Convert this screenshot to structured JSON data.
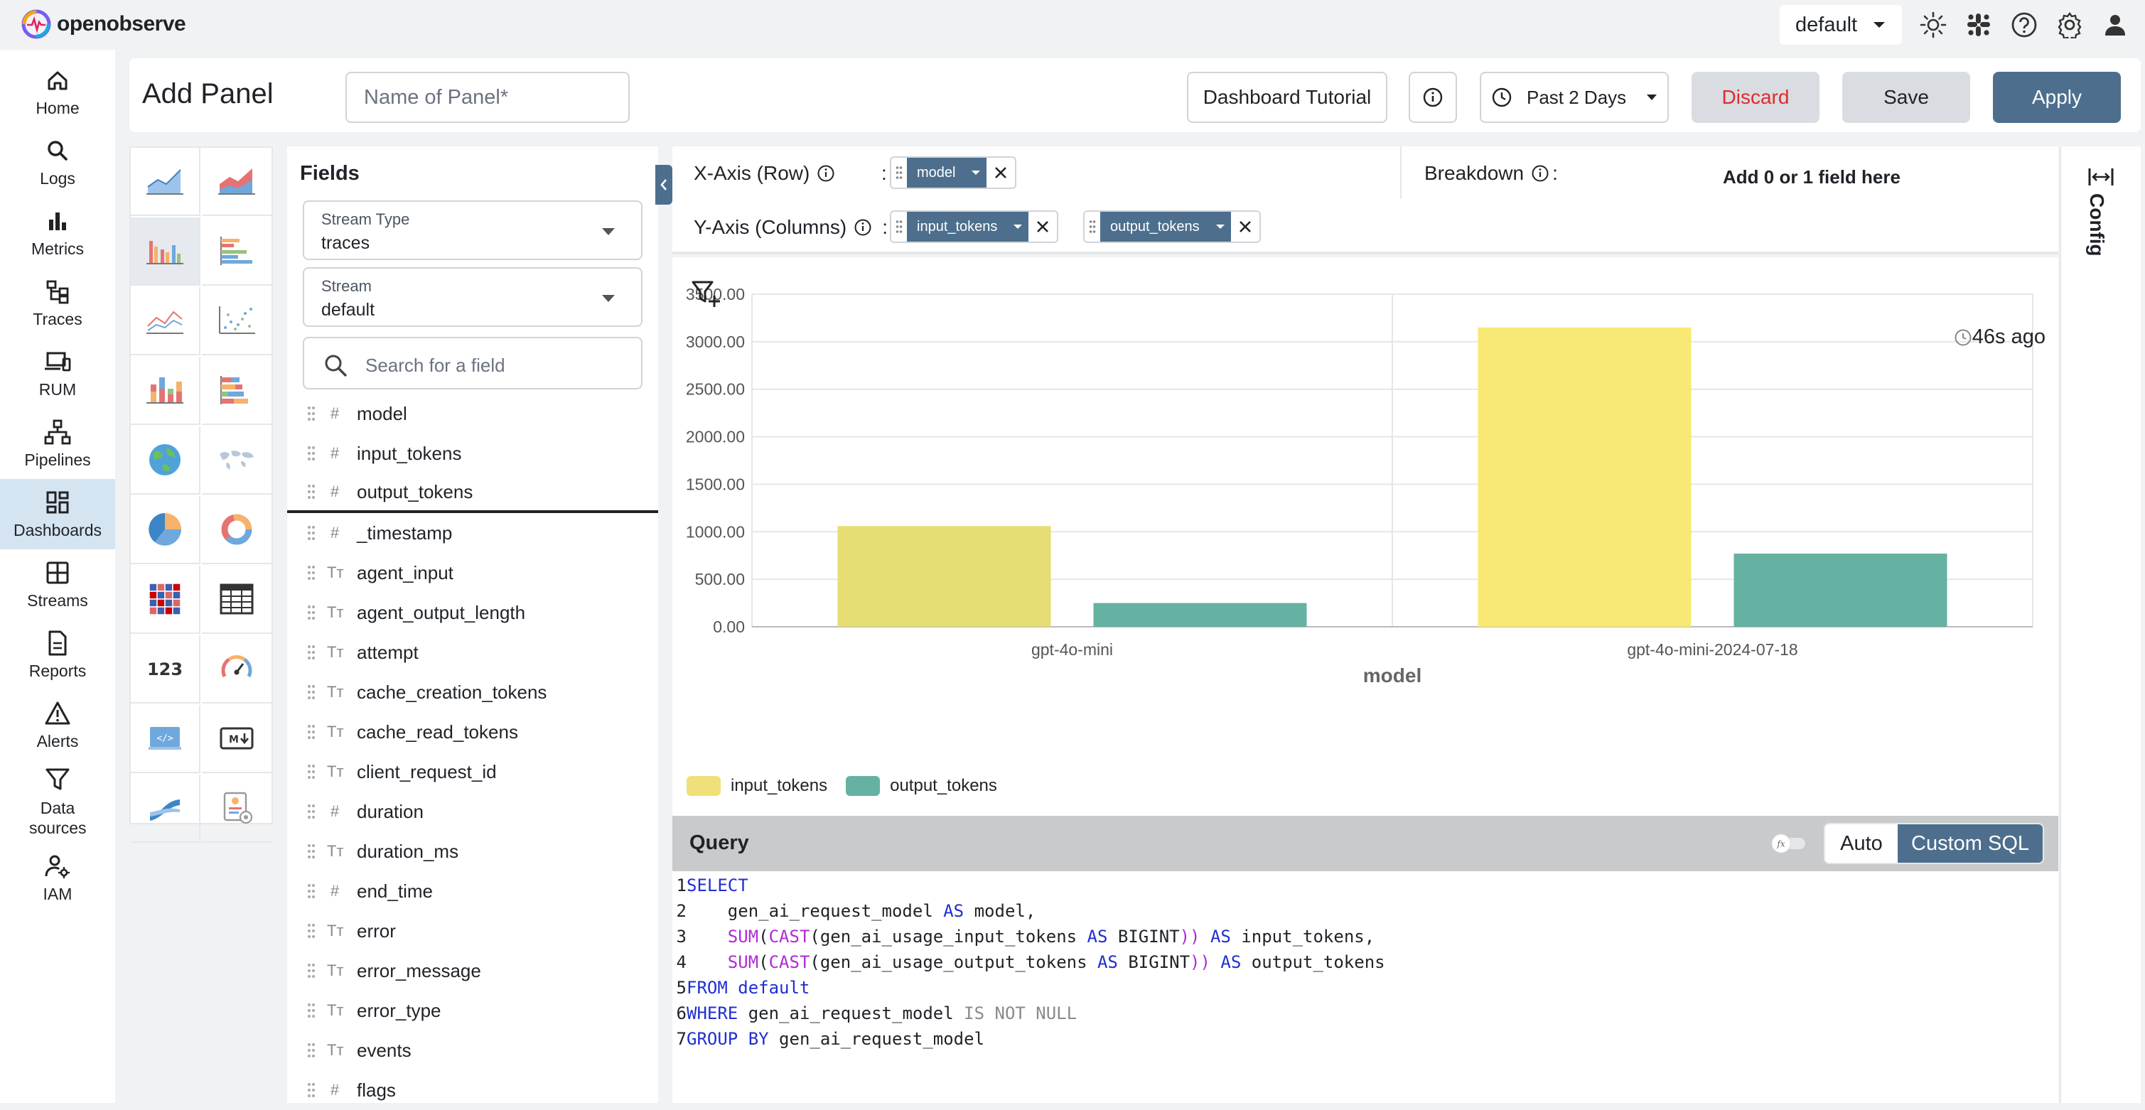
{
  "app": {
    "logo_text": "openobserve"
  },
  "topbar": {
    "org": "default",
    "icons": [
      "theme-light-icon",
      "slack-icon",
      "help-icon",
      "settings-icon",
      "user-icon"
    ]
  },
  "nav": [
    {
      "label": "Home",
      "icon": "home-icon"
    },
    {
      "label": "Logs",
      "icon": "search-icon"
    },
    {
      "label": "Metrics",
      "icon": "bar-chart-icon"
    },
    {
      "label": "Traces",
      "icon": "traces-icon"
    },
    {
      "label": "RUM",
      "icon": "devices-icon"
    },
    {
      "label": "Pipelines",
      "icon": "pipelines-icon"
    },
    {
      "label": "Dashboards",
      "icon": "dashboard-icon",
      "active": true
    },
    {
      "label": "Streams",
      "icon": "streams-icon"
    },
    {
      "label": "Reports",
      "icon": "reports-icon"
    },
    {
      "label": "Alerts",
      "icon": "alert-icon"
    },
    {
      "label": "Data sources",
      "icon": "filter-icon"
    },
    {
      "label": "IAM",
      "icon": "iam-icon"
    }
  ],
  "header": {
    "title": "Add Panel",
    "panel_name_placeholder": "Name of Panel*",
    "tutorial": "Dashboard Tutorial",
    "time_range": "Past 2 Days",
    "discard": "Discard",
    "save": "Save",
    "apply": "Apply"
  },
  "fields": {
    "title": "Fields",
    "stream_type_label": "Stream Type",
    "stream_type_value": "traces",
    "stream_label": "Stream",
    "stream_value": "default",
    "search_placeholder": "Search for a field",
    "items": [
      {
        "name": "model",
        "type": "#"
      },
      {
        "name": "input_tokens",
        "type": "#"
      },
      {
        "name": "output_tokens",
        "type": "#"
      },
      {
        "name": "_timestamp",
        "type": "#"
      },
      {
        "name": "agent_input",
        "type": "Tт"
      },
      {
        "name": "agent_output_length",
        "type": "Tт"
      },
      {
        "name": "attempt",
        "type": "Tт"
      },
      {
        "name": "cache_creation_tokens",
        "type": "Tт"
      },
      {
        "name": "cache_read_tokens",
        "type": "Tт"
      },
      {
        "name": "client_request_id",
        "type": "Tт"
      },
      {
        "name": "duration",
        "type": "#"
      },
      {
        "name": "duration_ms",
        "type": "Tт"
      },
      {
        "name": "end_time",
        "type": "#"
      },
      {
        "name": "error",
        "type": "Tт"
      },
      {
        "name": "error_message",
        "type": "Tт"
      },
      {
        "name": "error_type",
        "type": "Tт"
      },
      {
        "name": "events",
        "type": "Tт"
      },
      {
        "name": "flags",
        "type": "#"
      }
    ]
  },
  "axes": {
    "x_label": "X-Axis (Row)",
    "x_colon": ":",
    "x_field": "model",
    "breakdown_label": "Breakdown",
    "breakdown_colon": ":",
    "breakdown_hint": "Add 0 or 1 field here",
    "y_label": "Y-Axis (Columns)",
    "y_colon": ":",
    "y_fields": [
      "input_tokens",
      "output_tokens"
    ]
  },
  "chart": {
    "last_refreshed": "46s ago"
  },
  "chart_data": {
    "type": "bar",
    "categories": [
      "gpt-4o-mini",
      "gpt-4o-mini-2024-07-18"
    ],
    "series": [
      {
        "name": "input_tokens",
        "values": [
          1060,
          3150
        ],
        "color": "#f8e874"
      },
      {
        "name": "output_tokens",
        "values": [
          250,
          770
        ],
        "color": "#66b2a2"
      }
    ],
    "xlabel": "model",
    "ylabel": "",
    "ylim": [
      0,
      3500
    ],
    "yticks": [
      "0.00",
      "500.00",
      "1000.00",
      "1500.00",
      "2000.00",
      "2500.00",
      "3000.00",
      "3500.00"
    ],
    "grid": true,
    "legend_position": "bottom-left"
  },
  "query": {
    "title": "Query",
    "mode_auto": "Auto",
    "mode_custom": "Custom SQL",
    "fx_label": "fx",
    "lines": [
      {
        "n": "1",
        "parts": [
          {
            "t": "SELECT",
            "c": "kw"
          }
        ]
      },
      {
        "n": "2",
        "parts": [
          {
            "t": "    gen_ai_request_model ",
            "c": ""
          },
          {
            "t": "AS",
            "c": "kw"
          },
          {
            "t": " model,",
            "c": ""
          }
        ]
      },
      {
        "n": "3",
        "parts": [
          {
            "t": "    ",
            "c": ""
          },
          {
            "t": "SUM",
            "c": "fn"
          },
          {
            "t": "(",
            "c": ""
          },
          {
            "t": "CAST",
            "c": "fn"
          },
          {
            "t": "(gen_ai_usage_input_tokens ",
            "c": ""
          },
          {
            "t": "AS",
            "c": "kw"
          },
          {
            "t": " BIGINT",
            "c": ""
          },
          {
            "t": "))",
            "c": "fn"
          },
          {
            "t": " ",
            "c": ""
          },
          {
            "t": "AS",
            "c": "kw"
          },
          {
            "t": " input_tokens,",
            "c": ""
          }
        ]
      },
      {
        "n": "4",
        "parts": [
          {
            "t": "    ",
            "c": ""
          },
          {
            "t": "SUM",
            "c": "fn"
          },
          {
            "t": "(",
            "c": ""
          },
          {
            "t": "CAST",
            "c": "fn"
          },
          {
            "t": "(gen_ai_usage_output_tokens ",
            "c": ""
          },
          {
            "t": "AS",
            "c": "kw"
          },
          {
            "t": " BIGINT",
            "c": ""
          },
          {
            "t": "))",
            "c": "fn"
          },
          {
            "t": " ",
            "c": ""
          },
          {
            "t": "AS",
            "c": "kw"
          },
          {
            "t": " output_tokens",
            "c": ""
          }
        ]
      },
      {
        "n": "5",
        "parts": [
          {
            "t": "FROM",
            "c": "kw"
          },
          {
            "t": " ",
            "c": ""
          },
          {
            "t": "default",
            "c": "kw"
          }
        ]
      },
      {
        "n": "6",
        "parts": [
          {
            "t": "WHERE",
            "c": "kw"
          },
          {
            "t": " gen_ai_request_model ",
            "c": ""
          },
          {
            "t": "IS NOT NULL",
            "c": "gr"
          }
        ]
      },
      {
        "n": "7",
        "parts": [
          {
            "t": "GROUP BY",
            "c": "kw"
          },
          {
            "t": " gen_ai_request_model",
            "c": ""
          }
        ]
      }
    ]
  },
  "config": {
    "label": "Config"
  }
}
